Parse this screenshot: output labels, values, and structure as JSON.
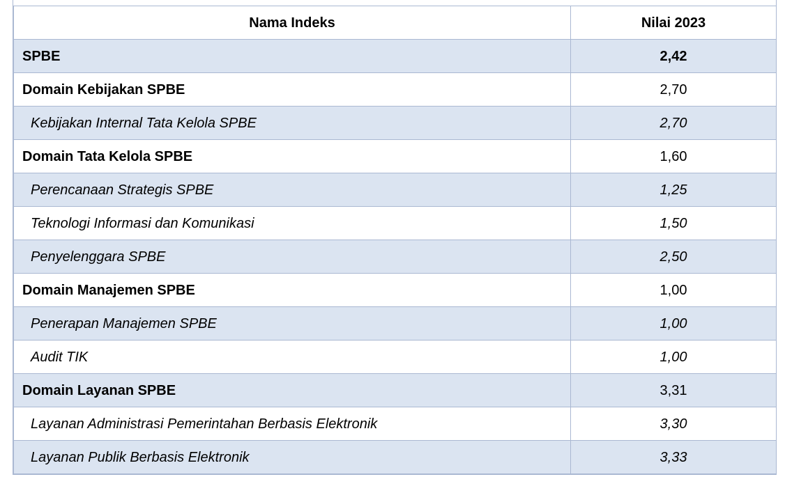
{
  "table": {
    "headers": {
      "name": "Nama Indeks",
      "value": "Nilai 2023"
    },
    "rows": [
      {
        "name": "SPBE",
        "value": "2,42",
        "level": "top",
        "shaded": true
      },
      {
        "name": "Domain Kebijakan SPBE",
        "value": "2,70",
        "level": "domain",
        "shaded": false
      },
      {
        "name": "Kebijakan Internal Tata Kelola SPBE",
        "value": "2,70",
        "level": "sub",
        "shaded": true
      },
      {
        "name": "Domain Tata Kelola SPBE",
        "value": "1,60",
        "level": "domain",
        "shaded": false
      },
      {
        "name": "Perencanaan Strategis SPBE",
        "value": "1,25",
        "level": "sub",
        "shaded": true
      },
      {
        "name": "Teknologi Informasi dan Komunikasi",
        "value": "1,50",
        "level": "sub",
        "shaded": false
      },
      {
        "name": "Penyelenggara SPBE",
        "value": "2,50",
        "level": "sub",
        "shaded": true
      },
      {
        "name": "Domain Manajemen SPBE",
        "value": "1,00",
        "level": "domain",
        "shaded": false
      },
      {
        "name": "Penerapan Manajemen SPBE",
        "value": "1,00",
        "level": "sub",
        "shaded": true
      },
      {
        "name": "Audit TIK",
        "value": "1,00",
        "level": "sub",
        "shaded": false
      },
      {
        "name": "Domain Layanan SPBE",
        "value": "3,31",
        "level": "domain",
        "shaded": true
      },
      {
        "name": "Layanan Administrasi Pemerintahan Berbasis Elektronik",
        "value": "3,30",
        "level": "sub",
        "shaded": false
      },
      {
        "name": "Layanan Publik Berbasis Elektronik",
        "value": "3,33",
        "level": "sub",
        "shaded": true
      }
    ]
  }
}
